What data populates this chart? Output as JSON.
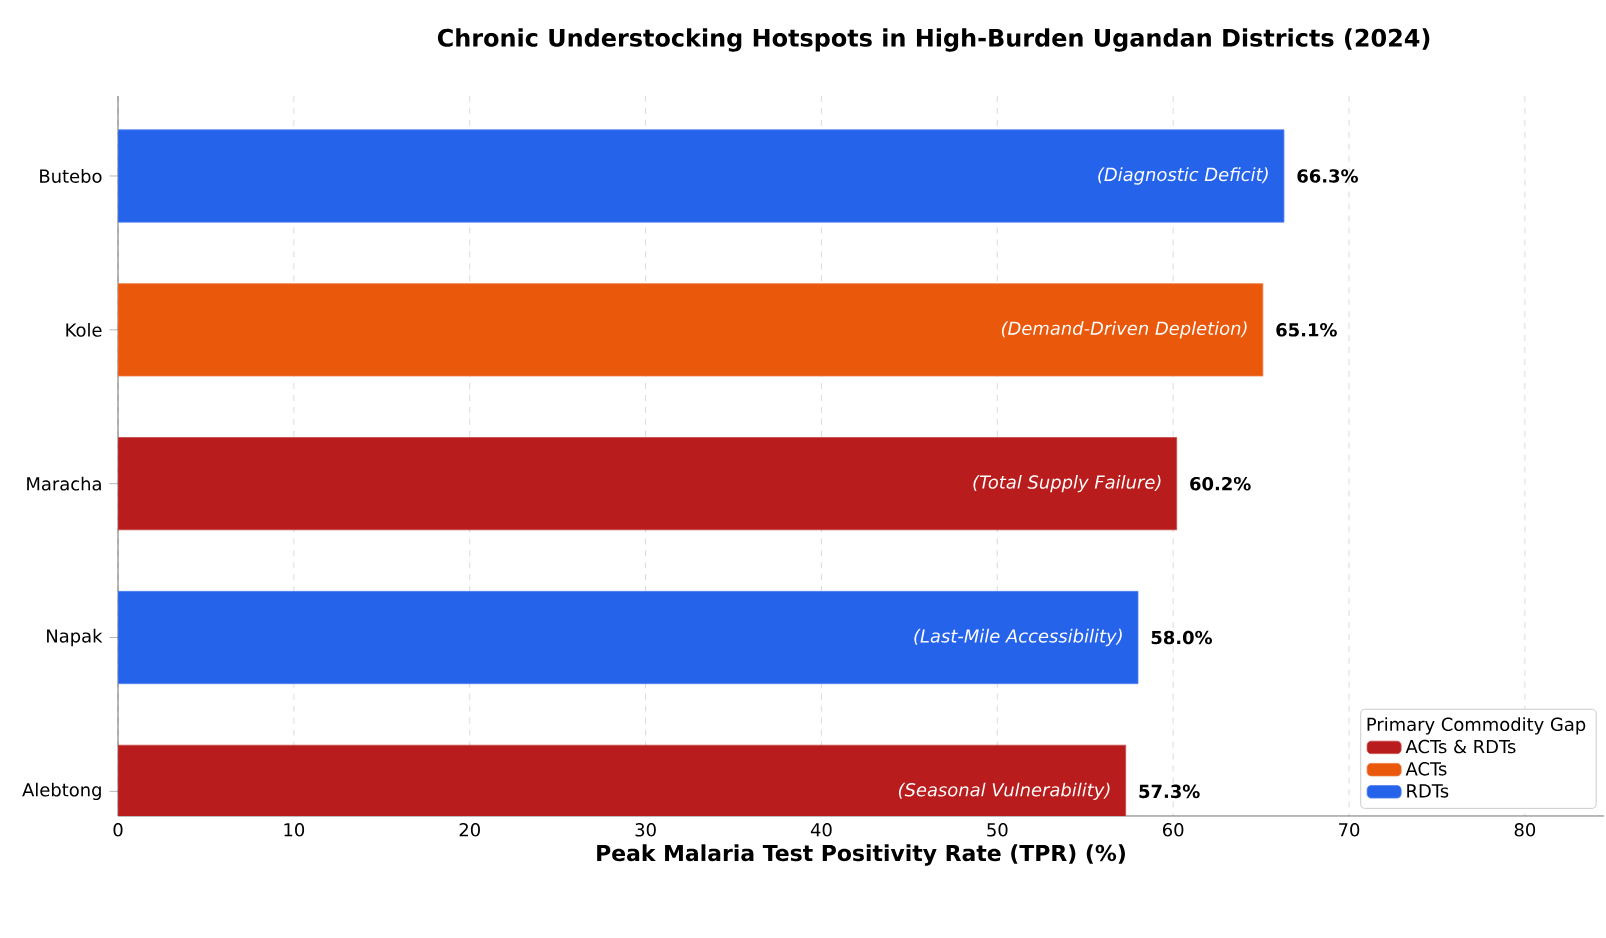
{
  "chart_data": {
    "type": "bar",
    "orientation": "horizontal",
    "title": "Chronic Understocking Hotspots in High-Burden Ugandan Districts (2024)",
    "xlabel": "Peak Malaria Test Positivity Rate (TPR) (%)",
    "categories": [
      "Butebo",
      "Kole",
      "Maracha",
      "Napak",
      "Alebtong"
    ],
    "series": [
      {
        "name": "ACTs & RDTs",
        "color": "#b91c1c",
        "values": [
          null,
          null,
          60.2,
          null,
          57.3
        ],
        "value_labels": [
          null,
          null,
          "60.2%",
          null,
          "57.3%"
        ]
      },
      {
        "name": "ACTs",
        "color": "#ea580c",
        "values": [
          null,
          65.1,
          null,
          null,
          null
        ],
        "value_labels": [
          null,
          "65.1%",
          null,
          null,
          null
        ]
      },
      {
        "name": "RDTs",
        "color": "#2563eb",
        "values": [
          66.3,
          null,
          null,
          58.0,
          null
        ],
        "value_labels": [
          "66.3%",
          null,
          null,
          "58.0%",
          null
        ]
      }
    ],
    "annotations": [
      "(Diagnostic Deficit)",
      "(Demand-Driven Depletion)",
      "(Total Supply Failure)",
      "(Last-Mile Accessibility)",
      "(Seasonal Vulnerability)"
    ],
    "legend_title": "Primary Commodity Gap",
    "legend": "bottom right",
    "grid": "x",
    "xlim": [
      0,
      84.5
    ],
    "xticks": [
      0,
      10,
      20,
      30,
      40,
      50,
      60,
      70,
      80
    ]
  }
}
